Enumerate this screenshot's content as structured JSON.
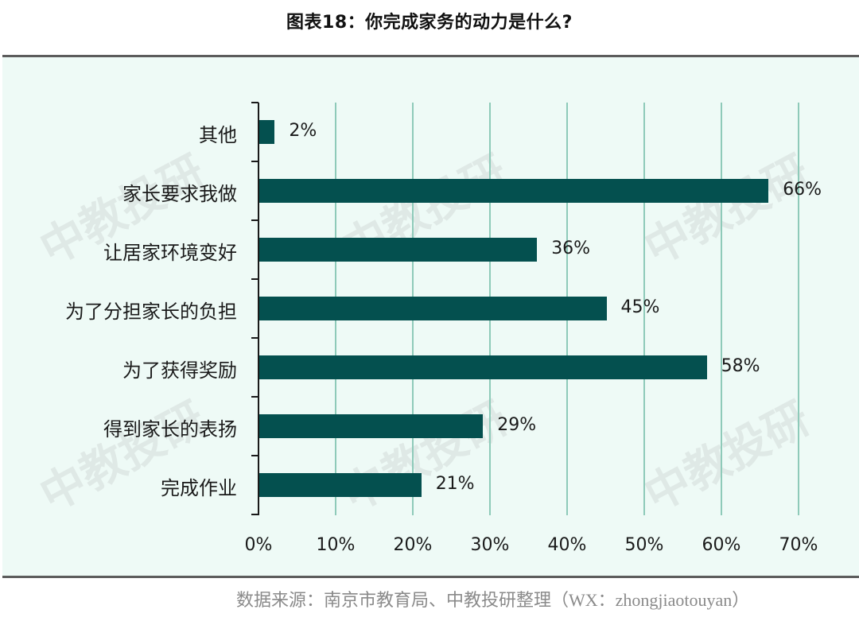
{
  "title": "图表18：你完成家务的动力是什么?",
  "source": "数据来源：南京市教育局、中教投研整理（WX：zhongjiaotouyan）",
  "watermark": "中教投研",
  "colors": {
    "bar": "#04504f",
    "grid": "#8ecab9",
    "panel_bg": "#eefaf6"
  },
  "chart_data": {
    "type": "bar",
    "orientation": "horizontal",
    "title": "图表18：你完成家务的动力是什么?",
    "categories": [
      "其他",
      "家长要求我做",
      "让居家环境变好",
      "为了分担家长的负担",
      "为了获得奖励",
      "得到家长的表扬",
      "完成作业"
    ],
    "values": [
      2,
      66,
      36,
      45,
      58,
      29,
      21
    ],
    "value_labels": [
      "2%",
      "66%",
      "36%",
      "45%",
      "58%",
      "29%",
      "21%"
    ],
    "xlabel": "",
    "ylabel": "",
    "xlim": [
      0,
      70
    ],
    "x_ticks": [
      "0%",
      "10%",
      "20%",
      "30%",
      "40%",
      "50%",
      "60%",
      "70%"
    ],
    "grid": "vertical",
    "legend": "none"
  }
}
